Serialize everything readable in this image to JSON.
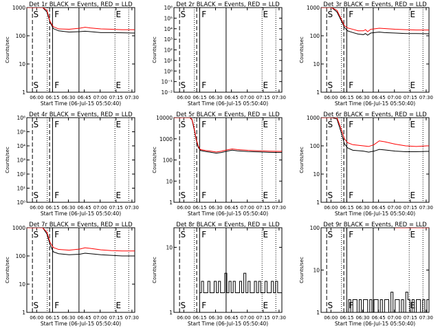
{
  "page": {
    "description": "RHESSI detector rear-segment lightcurves grid"
  },
  "common": {
    "ylabel": "Counts/sec",
    "xlabel": "Start Time (06-Jul-15 05:50:40)",
    "xticks": [
      "06:00",
      "06:15",
      "06:30",
      "06:45",
      "07:00",
      "07:15",
      "07:30"
    ],
    "time_unit": "minutes after 05:50:40",
    "xlim_min": [
      0,
      102
    ],
    "dashed_line_min": 5.3,
    "vertical_lines": [
      {
        "style": "dotted",
        "t_min": 19.3
      },
      {
        "style": "dashed",
        "t_min": 21.5
      },
      {
        "style": "solid",
        "t_min": 24.3
      },
      {
        "style": "solid",
        "t_min": 49.3
      },
      {
        "style": "dotted",
        "t_min": 83.3
      },
      {
        "style": "dotted",
        "t_min": 96.3
      }
    ],
    "flag_labels": [
      {
        "text": "S",
        "t_min": 5.5
      },
      {
        "text": "F",
        "t_min": 25.5
      },
      {
        "text": "E",
        "t_min": 83.5
      }
    ],
    "series_colors": {
      "events": "#000000",
      "lld": "#ff0000"
    }
  },
  "chart_data": [
    {
      "type": "line",
      "title": "Det 1r BLACK = Events, RED = LLD",
      "xlabel": "Start Time (06-Jul-15 05:50:40)",
      "ylabel": "Counts/sec",
      "yticks": [
        "1",
        "10",
        "100",
        "1000"
      ],
      "ylim": [
        1,
        1000
      ],
      "log": true,
      "series": [
        {
          "name": "Events",
          "x": [
            0,
            5,
            10,
            15,
            19,
            22,
            25,
            30,
            40,
            50,
            55,
            60,
            70,
            80,
            90,
            100,
            102
          ],
          "y": [
            1200,
            1200,
            1200,
            1100,
            700,
            300,
            180,
            150,
            135,
            140,
            145,
            140,
            130,
            130,
            128,
            125,
            125
          ]
        },
        {
          "name": "LLD",
          "x": [
            0,
            5,
            10,
            15,
            19,
            22,
            25,
            30,
            40,
            50,
            55,
            60,
            70,
            80,
            90,
            100,
            102
          ],
          "y": [
            1200,
            1200,
            1200,
            1150,
            800,
            320,
            210,
            175,
            170,
            185,
            200,
            190,
            175,
            170,
            165,
            165,
            165
          ]
        }
      ]
    },
    {
      "type": "line",
      "title": "Det 2r BLACK = Events, RED = LLD",
      "xlabel": "Start Time (06-Jul-15 05:50:40)",
      "ylabel": "Counts/sec",
      "yticks": [
        "10⁻²",
        "10⁻¹",
        "10⁰",
        "10¹",
        "10²",
        "10³",
        "10⁴",
        "10⁵",
        "10⁶"
      ],
      "ylim": [
        0.01,
        1000000
      ],
      "log": true,
      "series": []
    },
    {
      "type": "line",
      "title": "Det 3r BLACK = Events, RED = LLD",
      "xlabel": "Start Time (06-Jul-15 05:50:40)",
      "ylabel": "Counts/sec",
      "yticks": [
        "1",
        "10",
        "100",
        "1000"
      ],
      "ylim": [
        1,
        1000
      ],
      "log": true,
      "series": [
        {
          "name": "Events",
          "x": [
            0,
            5,
            10,
            15,
            19,
            22,
            25,
            30,
            35,
            40,
            42,
            44,
            47,
            50,
            55,
            60,
            70,
            80,
            90,
            100,
            102
          ],
          "y": [
            1200,
            1200,
            1100,
            700,
            350,
            200,
            150,
            130,
            115,
            110,
            120,
            105,
            125,
            130,
            135,
            130,
            125,
            120,
            120,
            118,
            118
          ]
        },
        {
          "name": "LLD",
          "x": [
            0,
            5,
            10,
            15,
            19,
            22,
            25,
            30,
            35,
            40,
            42,
            44,
            47,
            50,
            55,
            60,
            70,
            80,
            90,
            100,
            102
          ],
          "y": [
            1200,
            1200,
            1150,
            800,
            400,
            230,
            190,
            170,
            150,
            150,
            165,
            140,
            170,
            175,
            185,
            180,
            170,
            165,
            160,
            160,
            160
          ]
        }
      ]
    },
    {
      "type": "line",
      "title": "Det 4r BLACK = Events, RED = LLD",
      "xlabel": "Start Time (06-Jul-15 05:50:40)",
      "ylabel": "Counts/sec",
      "yticks": [
        "10⁰",
        "10¹",
        "10²",
        "10³",
        "10⁴",
        "10⁵",
        "10⁶"
      ],
      "ylim": [
        1,
        1000000
      ],
      "log": true,
      "series": []
    },
    {
      "type": "line",
      "title": "Det 5r BLACK = Events, RED = LLD",
      "xlabel": "Start Time (06-Jul-15 05:50:40)",
      "ylabel": "Counts/sec",
      "yticks": [
        "1",
        "10",
        "100",
        "1000",
        "10000"
      ],
      "ylim": [
        1,
        10000
      ],
      "log": true,
      "series": [
        {
          "name": "Events",
          "x": [
            0,
            5,
            10,
            15,
            17,
            19,
            21,
            23,
            25,
            30,
            35,
            40,
            45,
            50,
            55,
            60,
            70,
            80,
            90,
            100,
            102
          ],
          "y": [
            12000,
            12000,
            12000,
            12000,
            8000,
            3000,
            900,
            400,
            280,
            250,
            230,
            210,
            225,
            260,
            290,
            270,
            250,
            240,
            230,
            225,
            230
          ]
        },
        {
          "name": "LLD",
          "x": [
            0,
            5,
            10,
            15,
            17,
            19,
            21,
            23,
            25,
            30,
            35,
            40,
            45,
            50,
            55,
            60,
            70,
            80,
            90,
            100,
            102
          ],
          "y": [
            12000,
            12000,
            12000,
            12000,
            8500,
            3500,
            1000,
            450,
            310,
            280,
            260,
            240,
            260,
            300,
            330,
            310,
            285,
            270,
            260,
            255,
            260
          ]
        }
      ]
    },
    {
      "type": "line",
      "title": "Det 6r BLACK = Events, RED = LLD",
      "xlabel": "Start Time (06-Jul-15 05:50:40)",
      "ylabel": "Counts/sec",
      "yticks": [
        "1",
        "10",
        "100",
        "1000"
      ],
      "ylim": [
        1,
        1000
      ],
      "log": true,
      "series": [
        {
          "name": "Events",
          "x": [
            0,
            5,
            10,
            15,
            19,
            22,
            25,
            30,
            40,
            45,
            50,
            55,
            60,
            70,
            80,
            90,
            100,
            102
          ],
          "y": [
            1200,
            1200,
            1150,
            900,
            300,
            120,
            85,
            70,
            65,
            60,
            65,
            75,
            72,
            65,
            62,
            62,
            64,
            64
          ]
        },
        {
          "name": "LLD",
          "x": [
            0,
            5,
            10,
            15,
            19,
            22,
            25,
            30,
            40,
            45,
            50,
            55,
            60,
            70,
            80,
            90,
            100,
            102
          ],
          "y": [
            1200,
            1200,
            1180,
            1000,
            400,
            180,
            130,
            110,
            100,
            95,
            110,
            150,
            140,
            115,
            100,
            95,
            100,
            100
          ]
        }
      ]
    },
    {
      "type": "line",
      "title": "Det 7r BLACK = Events, RED = LLD",
      "xlabel": "Start Time (06-Jul-15 05:50:40)",
      "ylabel": "Counts/sec",
      "yticks": [
        "1",
        "10",
        "100",
        "1000"
      ],
      "ylim": [
        1,
        1000
      ],
      "log": true,
      "series": [
        {
          "name": "Events",
          "x": [
            0,
            5,
            10,
            15,
            19,
            22,
            25,
            30,
            40,
            50,
            55,
            60,
            70,
            80,
            90,
            100,
            102
          ],
          "y": [
            1200,
            1200,
            1200,
            1100,
            600,
            250,
            140,
            120,
            110,
            115,
            125,
            120,
            110,
            105,
            100,
            100,
            100
          ]
        },
        {
          "name": "LLD",
          "x": [
            0,
            5,
            10,
            15,
            19,
            22,
            25,
            30,
            40,
            50,
            55,
            60,
            70,
            80,
            90,
            100,
            102
          ],
          "y": [
            1200,
            1200,
            1200,
            1150,
            700,
            300,
            200,
            170,
            160,
            175,
            195,
            185,
            165,
            155,
            150,
            150,
            150
          ]
        }
      ]
    },
    {
      "type": "line",
      "title": "Det 8r BLACK = Events, RED = LLD",
      "xlabel": "Start Time (06-Jul-15 05:50:40)",
      "ylabel": "Counts/sec",
      "yticks": [
        "1",
        "10"
      ],
      "ylim": [
        1,
        20
      ],
      "log": true,
      "series": [
        {
          "name": "Events",
          "x": [
            24,
            26,
            28,
            30,
            32,
            34,
            36,
            38,
            40,
            42,
            44,
            46,
            48,
            50,
            52,
            54,
            56,
            58,
            60,
            62,
            64,
            66,
            68,
            70,
            72,
            74,
            76,
            78,
            80,
            82,
            84,
            86,
            88,
            90,
            92,
            94,
            96,
            98,
            100,
            102
          ],
          "y": [
            2,
            3,
            2,
            2,
            3,
            2,
            2,
            3,
            2,
            3,
            2,
            2,
            4,
            2,
            3,
            2,
            3,
            2,
            2,
            3,
            2,
            4,
            2,
            3,
            2,
            2,
            3,
            2,
            3,
            2,
            2,
            3,
            2,
            2,
            3,
            2,
            3,
            2,
            2,
            3
          ]
        }
      ]
    },
    {
      "type": "line",
      "title": "Det 9r BLACK = Events, RED = LLD",
      "xlabel": "Start Time (06-Jul-15 05:50:40)",
      "ylabel": "Counts/sec",
      "yticks": [
        "1",
        "10",
        "100"
      ],
      "ylim": [
        1,
        100
      ],
      "log": true,
      "series": [
        {
          "name": "Events",
          "x": [
            24,
            26,
            28,
            30,
            32,
            34,
            36,
            38,
            40,
            42,
            44,
            46,
            48,
            50,
            52,
            54,
            56,
            58,
            60,
            62,
            64,
            66,
            68,
            70,
            72,
            74,
            76,
            78,
            80,
            82,
            84,
            86,
            88,
            90,
            92,
            94,
            96,
            98,
            100,
            102
          ],
          "y": [
            1,
            2,
            1,
            2,
            2,
            1,
            2,
            1,
            2,
            2,
            1,
            2,
            1,
            2,
            2,
            1,
            2,
            1,
            2,
            2,
            1,
            3,
            1,
            2,
            2,
            1,
            2,
            1,
            3,
            2,
            1,
            2,
            1,
            2,
            2,
            1,
            2,
            1,
            2,
            2
          ]
        },
        {
          "name": "LLD",
          "x": [
            70,
            80,
            90,
            100,
            102
          ],
          "y": [
            110,
            110,
            110,
            110,
            110
          ]
        }
      ]
    }
  ]
}
